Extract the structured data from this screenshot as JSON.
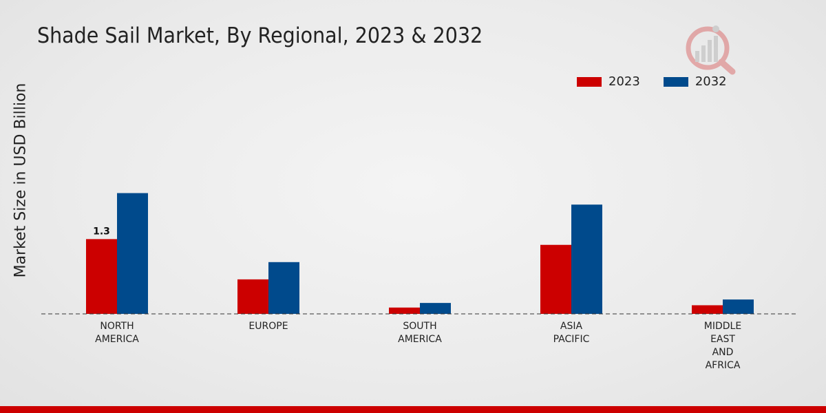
{
  "chart_data": {
    "type": "bar",
    "title": "Shade Sail Market, By Regional, 2023 & 2032",
    "ylabel": "Market Size in USD Billion",
    "xlabel": "",
    "categories": [
      [
        "NORTH",
        "AMERICA"
      ],
      [
        "EUROPE"
      ],
      [
        "SOUTH",
        "AMERICA"
      ],
      [
        "ASIA",
        "PACIFIC"
      ],
      [
        "MIDDLE",
        "EAST",
        "AND",
        "AFRICA"
      ]
    ],
    "series": [
      {
        "name": "2023",
        "color": "#cc0000",
        "values": [
          1.3,
          0.6,
          0.11,
          1.2,
          0.15
        ]
      },
      {
        "name": "2032",
        "color": "#004a8c",
        "values": [
          2.1,
          0.9,
          0.19,
          1.9,
          0.25
        ]
      }
    ],
    "data_labels": [
      {
        "category_index": 0,
        "series_index": 0,
        "text": "1.3"
      }
    ],
    "ylim": [
      0,
      4.5
    ],
    "grid": false,
    "legend_position": "top-right"
  },
  "theme": {
    "accent_bar": "#cc0000",
    "logo_color": "#cc0000"
  }
}
